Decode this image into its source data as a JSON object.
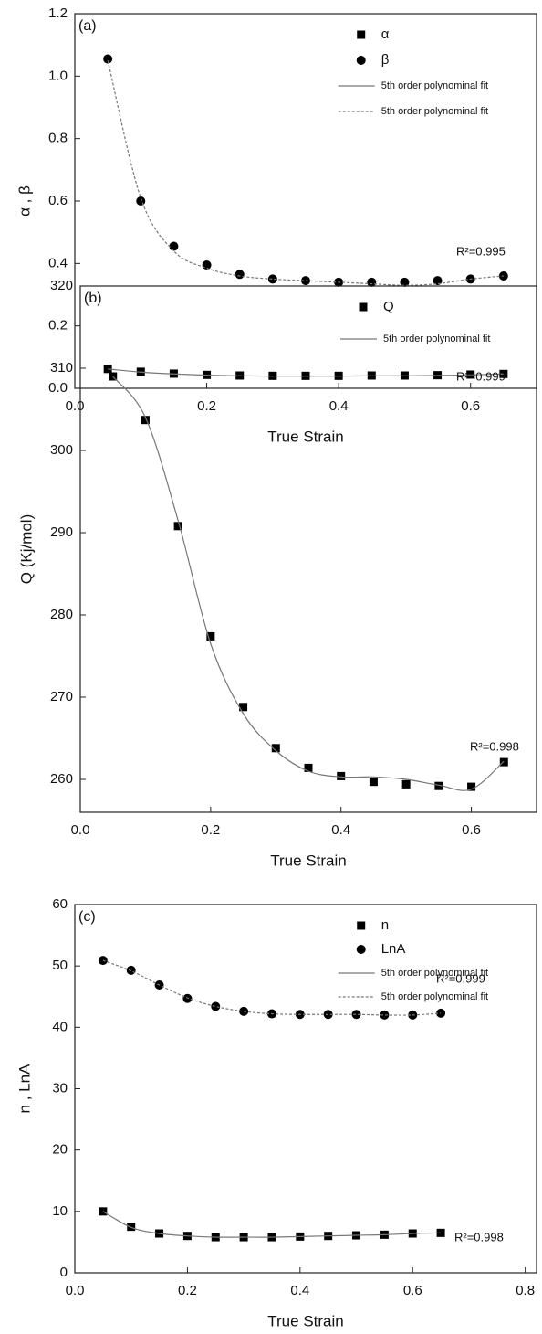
{
  "chart_data": [
    {
      "type": "scatter",
      "panel_label": "(a)",
      "x_label": "True Strain",
      "y_label": "α , β",
      "x": [
        0.05,
        0.1,
        0.15,
        0.2,
        0.25,
        0.3,
        0.35,
        0.4,
        0.45,
        0.5,
        0.55,
        0.6,
        0.65
      ],
      "series": [
        {
          "name": "α",
          "color": "#000000",
          "marker": "square",
          "values": [
            0.062,
            0.053,
            0.047,
            0.043,
            0.041,
            0.04,
            0.04,
            0.04,
            0.041,
            0.041,
            0.042,
            0.044,
            0.046
          ]
        },
        {
          "name": "β",
          "color": "#000000",
          "marker": "circle",
          "values": [
            1.055,
            0.6,
            0.455,
            0.395,
            0.365,
            0.35,
            0.345,
            0.34,
            0.34,
            0.34,
            0.345,
            0.35,
            0.36
          ]
        },
        {
          "name": "5th order polynominal fit",
          "color": "#777777",
          "dash": "solid",
          "values": [
            0.062,
            0.052,
            0.046,
            0.042,
            0.04,
            0.039,
            0.039,
            0.039,
            0.04,
            0.04,
            0.041,
            0.043,
            0.046
          ]
        },
        {
          "name": "5th order polynominal fit",
          "color": "#777777",
          "dash": "dotted",
          "values": [
            1.05,
            0.61,
            0.44,
            0.385,
            0.36,
            0.35,
            0.345,
            0.34,
            0.335,
            0.33,
            0.335,
            0.35,
            0.36
          ]
        }
      ],
      "annotations": [
        "R²=0.995",
        "R²=0.999"
      ],
      "xlim": [
        0,
        0.7
      ],
      "xticks": [
        {
          "value": 0,
          "label": "0.0"
        },
        0.2,
        0.4,
        0.6
      ],
      "ylim": [
        0,
        1.2
      ],
      "yticks": [
        {
          "value": 0,
          "label": "0.0"
        },
        0.2,
        0.4,
        0.6,
        0.8,
        {
          "value": 1,
          "label": "1.0"
        },
        1.2
      ],
      "legend": "upper right"
    },
    {
      "type": "scatter",
      "panel_label": "(b)",
      "x_label": "True Strain",
      "y_label": "Q (Kj/mol)",
      "x": [
        0.05,
        0.1,
        0.15,
        0.2,
        0.25,
        0.3,
        0.35,
        0.4,
        0.45,
        0.5,
        0.55,
        0.6,
        0.65
      ],
      "series": [
        {
          "name": "Q",
          "color": "#000000",
          "marker": "square",
          "values": [
            309,
            303.7,
            290.8,
            277.4,
            268.8,
            263.8,
            261.4,
            260.4,
            259.7,
            259.4,
            259.2,
            259.1,
            262.1
          ]
        },
        {
          "name": "5th order polynominal fit",
          "color": "#777777",
          "dash": "solid",
          "values": [
            309,
            304,
            291.5,
            276.5,
            268,
            263.5,
            261,
            260.3,
            260.3,
            260,
            259.3,
            258.8,
            262.2
          ]
        }
      ],
      "annotations": [
        "R²=0.998"
      ],
      "xlim": [
        0,
        0.7
      ],
      "xticks": [
        {
          "value": 0,
          "label": "0.0"
        },
        0.2,
        0.4,
        0.6
      ],
      "ylim": [
        256,
        320
      ],
      "yticks": [
        260,
        270,
        280,
        290,
        300,
        310,
        320
      ],
      "legend": "upper right"
    },
    {
      "type": "scatter",
      "panel_label": "(c)",
      "x_label": "True Strain",
      "y_label": "n , LnA",
      "x": [
        0.05,
        0.1,
        0.15,
        0.2,
        0.25,
        0.3,
        0.35,
        0.4,
        0.45,
        0.5,
        0.55,
        0.6,
        0.65
      ],
      "series": [
        {
          "name": "n",
          "color": "#000000",
          "marker": "square",
          "values": [
            10,
            7.5,
            6.4,
            6.0,
            5.8,
            5.8,
            5.8,
            5.9,
            6.0,
            6.1,
            6.2,
            6.4,
            6.5
          ]
        },
        {
          "name": "LnA",
          "color": "#000000",
          "marker": "circle",
          "values": [
            50.9,
            49.3,
            46.9,
            44.7,
            43.4,
            42.6,
            42.2,
            42.1,
            42.1,
            42.1,
            42.0,
            42.0,
            42.3
          ]
        },
        {
          "name": "5th order polynominal fit",
          "color": "#777777",
          "dash": "solid",
          "values": [
            10,
            7.4,
            6.4,
            6.0,
            5.8,
            5.8,
            5.8,
            5.9,
            6.0,
            6.1,
            6.2,
            6.4,
            6.5
          ]
        },
        {
          "name": "5th order polynominal fit",
          "color": "#777777",
          "dash": "dotted",
          "values": [
            50.9,
            49.2,
            46.9,
            44.8,
            43.4,
            42.6,
            42.2,
            42.1,
            42.1,
            42.1,
            42.0,
            42.0,
            42.3
          ]
        }
      ],
      "annotations": [
        "R²=0.999",
        "R²=0.998"
      ],
      "xlim": [
        0,
        0.82
      ],
      "xticks": [
        {
          "value": 0,
          "label": "0.0"
        },
        0.2,
        0.4,
        0.6,
        0.8
      ],
      "ylim": [
        0,
        60
      ],
      "yticks": [
        0,
        10,
        20,
        30,
        40,
        50,
        60
      ],
      "legend": "upper right"
    }
  ]
}
